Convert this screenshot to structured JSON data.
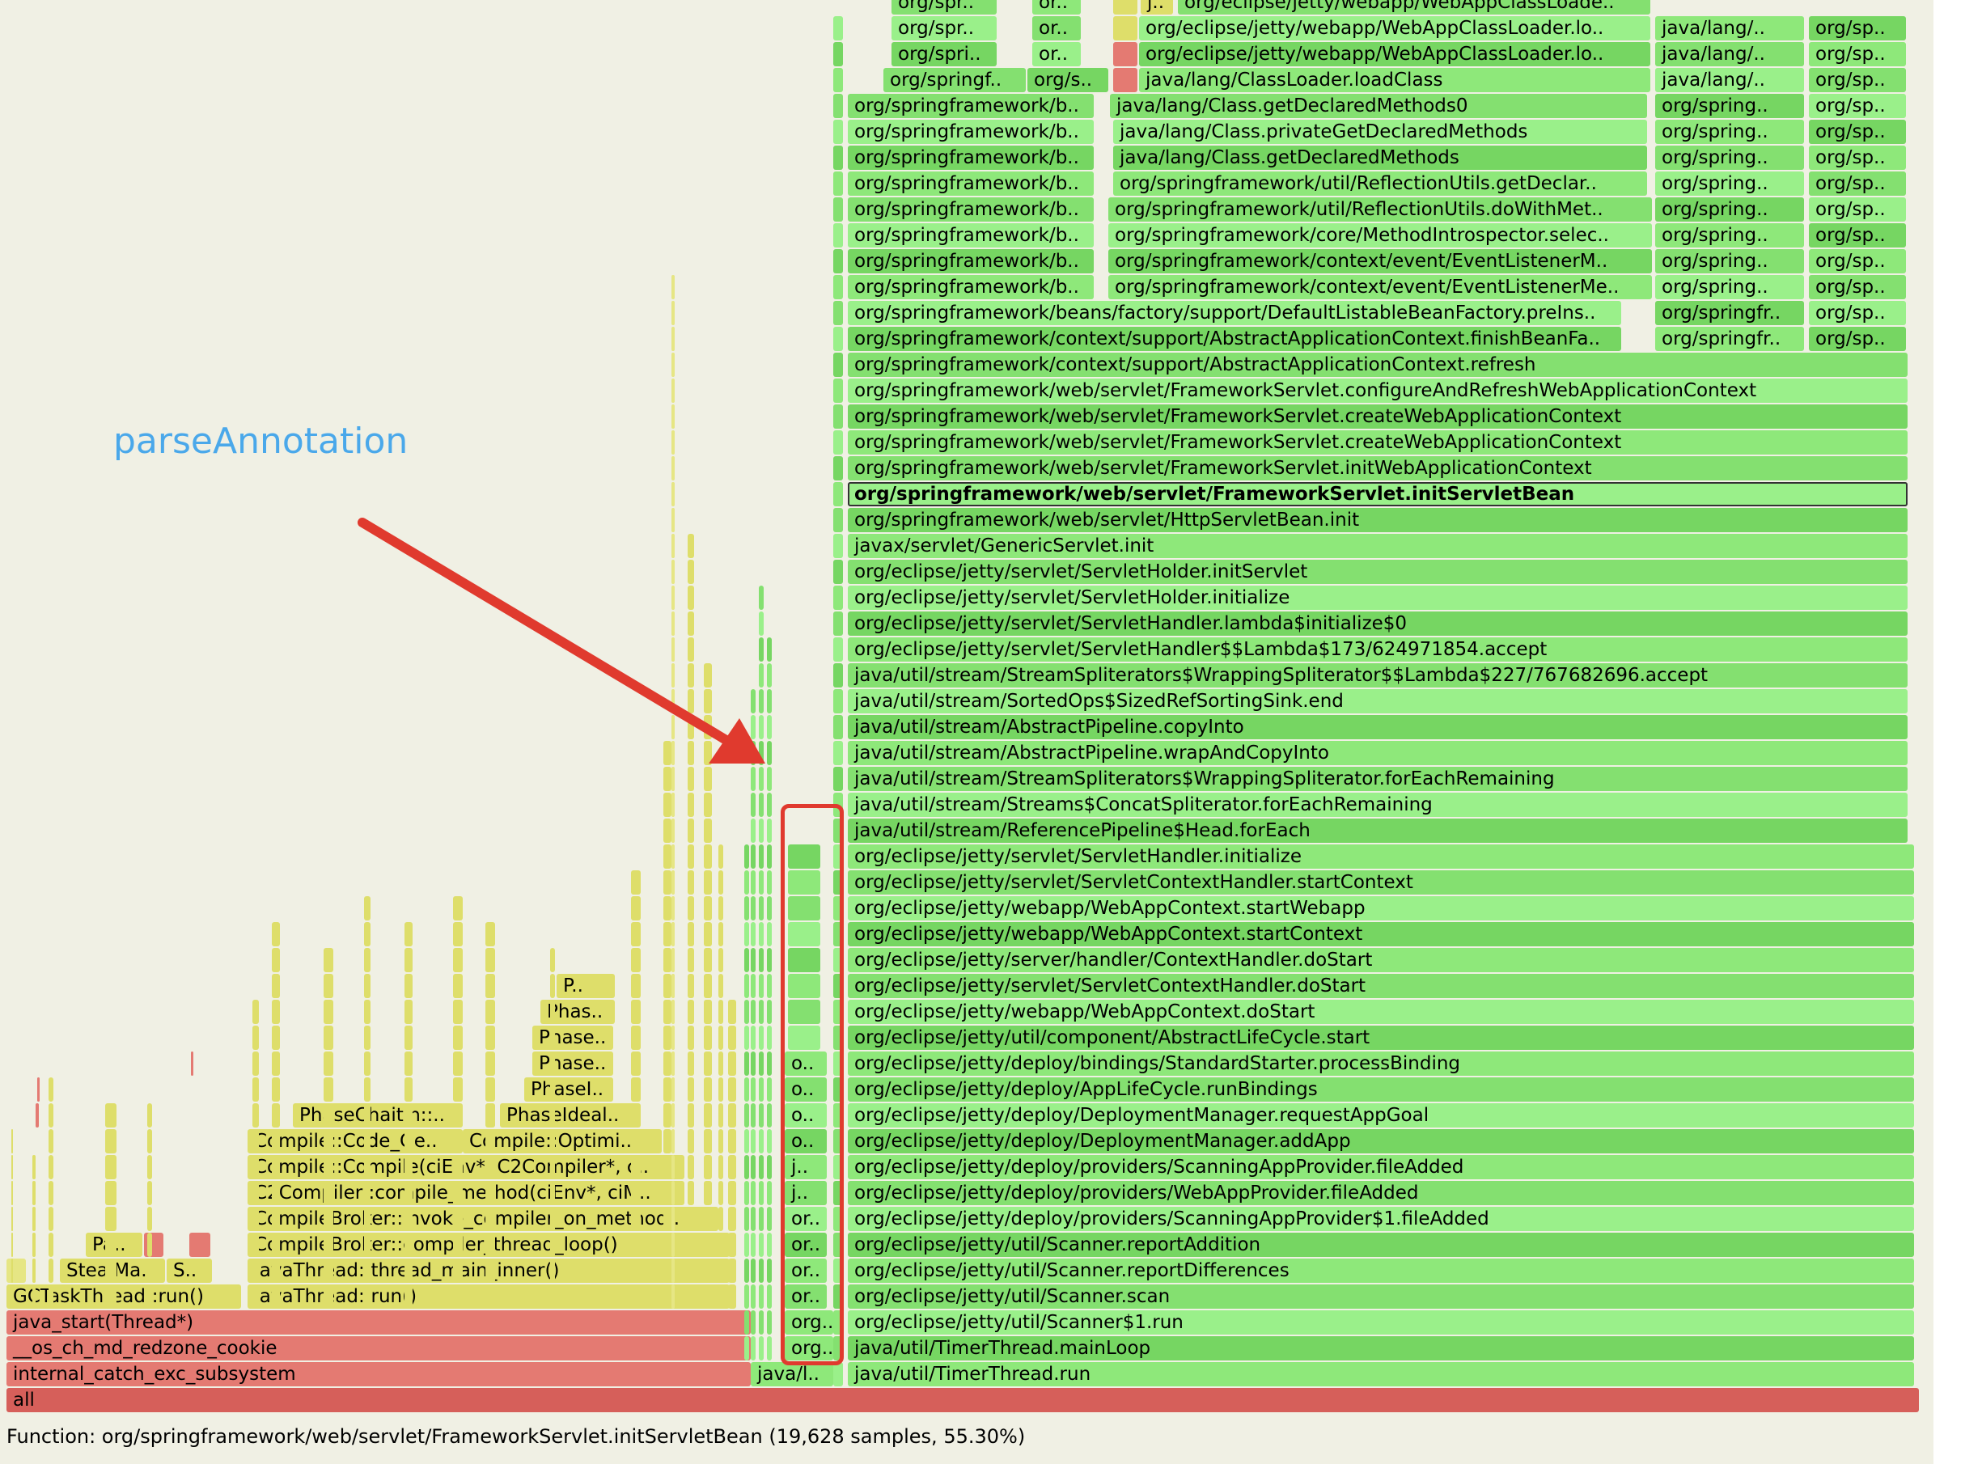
{
  "status": {
    "prefix": "Function: ",
    "function": "org/springframework/web/servlet/FrameworkServlet.initServletBean",
    "samples": "19,628",
    "percent": "55.30%",
    "text": "Function: org/springframework/web/servlet/FrameworkServlet.initServletBean (19,628 samples, 55.30%)"
  },
  "annotation": {
    "label": "parseAnnotation",
    "color": "#4aa8ea",
    "arrow_color": "#e03a2e",
    "box_color": "#e03a2e"
  },
  "colors": {
    "background": "#f0f0e4",
    "red": "#e47a72",
    "red_dark": "#d65f5a",
    "yellow": "#dede6a",
    "yellow_light": "#e6e684",
    "green": "#8ee87a",
    "green_dark": "#76d662"
  },
  "frames": {
    "root": "all",
    "left_stack": [
      "internal_catch_exc_subsystem",
      "__os_ch_md_redzone_cookie",
      "java_start(Thread*)",
      "GCTaskThread::run()",
      "JavaThread::run()",
      "JavaThread::thread_main_inner()",
      "StealMa..",
      "S..",
      "Pa..",
      "CompileBroker::compiler_thread_loop()",
      "CompileBroker::invoke_compiler_on_method..",
      "C2Compiler::compile_method(ciEnv*, ciM..",
      "Compile::Compile(ciEnv*, C2Compiler*, c..",
      "Compile::Code_Ge..",
      "Compile::Optimi..",
      "PhaseChaitin::..",
      "PhaseIdeal..",
      "PhaseI..",
      "Phase..",
      "Phase..",
      "Phas..",
      "P.."
    ],
    "boxed_column": [
      "java/l..",
      "org..",
      "org..",
      "or..",
      "or..",
      "or..",
      "or..",
      "j..",
      "j..",
      "o..",
      "o..",
      "o..",
      "o.."
    ],
    "main_stack": [
      "java/util/TimerThread.run",
      "java/util/TimerThread.mainLoop",
      "org/eclipse/jetty/util/Scanner$1.run",
      "org/eclipse/jetty/util/Scanner.scan",
      "org/eclipse/jetty/util/Scanner.reportDifferences",
      "org/eclipse/jetty/util/Scanner.reportAddition",
      "org/eclipse/jetty/deploy/providers/ScanningAppProvider$1.fileAdded",
      "org/eclipse/jetty/deploy/providers/WebAppProvider.fileAdded",
      "org/eclipse/jetty/deploy/providers/ScanningAppProvider.fileAdded",
      "org/eclipse/jetty/deploy/DeploymentManager.addApp",
      "org/eclipse/jetty/deploy/DeploymentManager.requestAppGoal",
      "org/eclipse/jetty/deploy/AppLifeCycle.runBindings",
      "org/eclipse/jetty/deploy/bindings/StandardStarter.processBinding",
      "org/eclipse/jetty/util/component/AbstractLifeCycle.start",
      "org/eclipse/jetty/webapp/WebAppContext.doStart",
      "org/eclipse/jetty/servlet/ServletContextHandler.doStart",
      "org/eclipse/jetty/server/handler/ContextHandler.doStart",
      "org/eclipse/jetty/webapp/WebAppContext.startContext",
      "org/eclipse/jetty/webapp/WebAppContext.startWebapp",
      "org/eclipse/jetty/servlet/ServletContextHandler.startContext",
      "org/eclipse/jetty/servlet/ServletHandler.initialize",
      "java/util/stream/ReferencePipeline$Head.forEach",
      "java/util/stream/Streams$ConcatSpliterator.forEachRemaining",
      "java/util/stream/StreamSpliterators$WrappingSpliterator.forEachRemaining",
      "java/util/stream/AbstractPipeline.wrapAndCopyInto",
      "java/util/stream/AbstractPipeline.copyInto",
      "java/util/stream/SortedOps$SizedRefSortingSink.end",
      "java/util/stream/StreamSpliterators$WrappingSpliterator$$Lambda$227/767682696.accept",
      "org/eclipse/jetty/servlet/ServletHandler$$Lambda$173/624971854.accept",
      "org/eclipse/jetty/servlet/ServletHandler.lambda$initialize$0",
      "org/eclipse/jetty/servlet/ServletHolder.initialize",
      "org/eclipse/jetty/servlet/ServletHolder.initServlet",
      "javax/servlet/GenericServlet.init",
      "org/springframework/web/servlet/HttpServletBean.init",
      "org/springframework/web/servlet/FrameworkServlet.initServletBean",
      "org/springframework/web/servlet/FrameworkServlet.initWebApplicationContext",
      "org/springframework/web/servlet/FrameworkServlet.createWebApplicationContext",
      "org/springframework/web/servlet/FrameworkServlet.createWebApplicationContext",
      "org/springframework/web/servlet/FrameworkServlet.configureAndRefreshWebApplicationContext",
      "org/springframework/context/support/AbstractApplicationContext.refresh"
    ],
    "upper_main": [
      "org/springframework/context/support/AbstractApplicationContext.finishBeanFa..",
      "org/springframework/beans/factory/support/DefaultListableBeanFactory.preIns.."
    ],
    "upper_left": [
      "org/springframework/b..",
      "org/springframework/b..",
      "org/springframework/b..",
      "org/springframework/b..",
      "org/springframework/b..",
      "org/springframework/b..",
      "org/springframework/b..",
      "org/springframework/b.."
    ],
    "upper_middle": [
      "org/springframework/context/event/EventListenerMe..",
      "org/springframework/context/event/EventListenerM..",
      "org/springframework/core/MethodIntrospector.selec..",
      "org/springframework/util/ReflectionUtils.doWithMet..",
      "org/springframework/util/ReflectionUtils.getDeclar..",
      "java/lang/Class.getDeclaredMethods",
      "java/lang/Class.privateGetDeclaredMethods",
      "java/lang/Class.getDeclaredMethods0",
      "java/lang/ClassLoader.loadClass",
      "org/eclipse/jetty/webapp/WebAppClassLoader.lo..",
      "org/eclipse/jetty/webapp/WebAppClassLoader.lo..",
      "org/eclipse/jetty/webapp/WebAppClassLoade.."
    ],
    "upper_right_a": [
      "org/springfr..",
      "org/springfr..",
      "org/spring..",
      "org/spring..",
      "org/spring..",
      "org/spring..",
      "org/spring..",
      "org/spring..",
      "org/spring..",
      "org/spring..",
      "java/lang/..",
      "java/lang/..",
      "java/lang/.."
    ],
    "upper_right_b": [
      "org/sp..",
      "org/sp..",
      "org/sp..",
      "org/sp..",
      "org/sp..",
      "org/sp..",
      "org/sp..",
      "org/sp..",
      "org/sp..",
      "org/sp..",
      "org/sp..",
      "org/sp..",
      "org/sp.."
    ],
    "top_left_small": [
      "org/springf..",
      "org/spri..",
      "org/spr..",
      "org/spr..",
      "org/spr.."
    ],
    "top_small_b": [
      "org/s..",
      "or..",
      "or..",
      "or..",
      "or.."
    ],
    "top_small_c": [
      "j.."
    ]
  }
}
